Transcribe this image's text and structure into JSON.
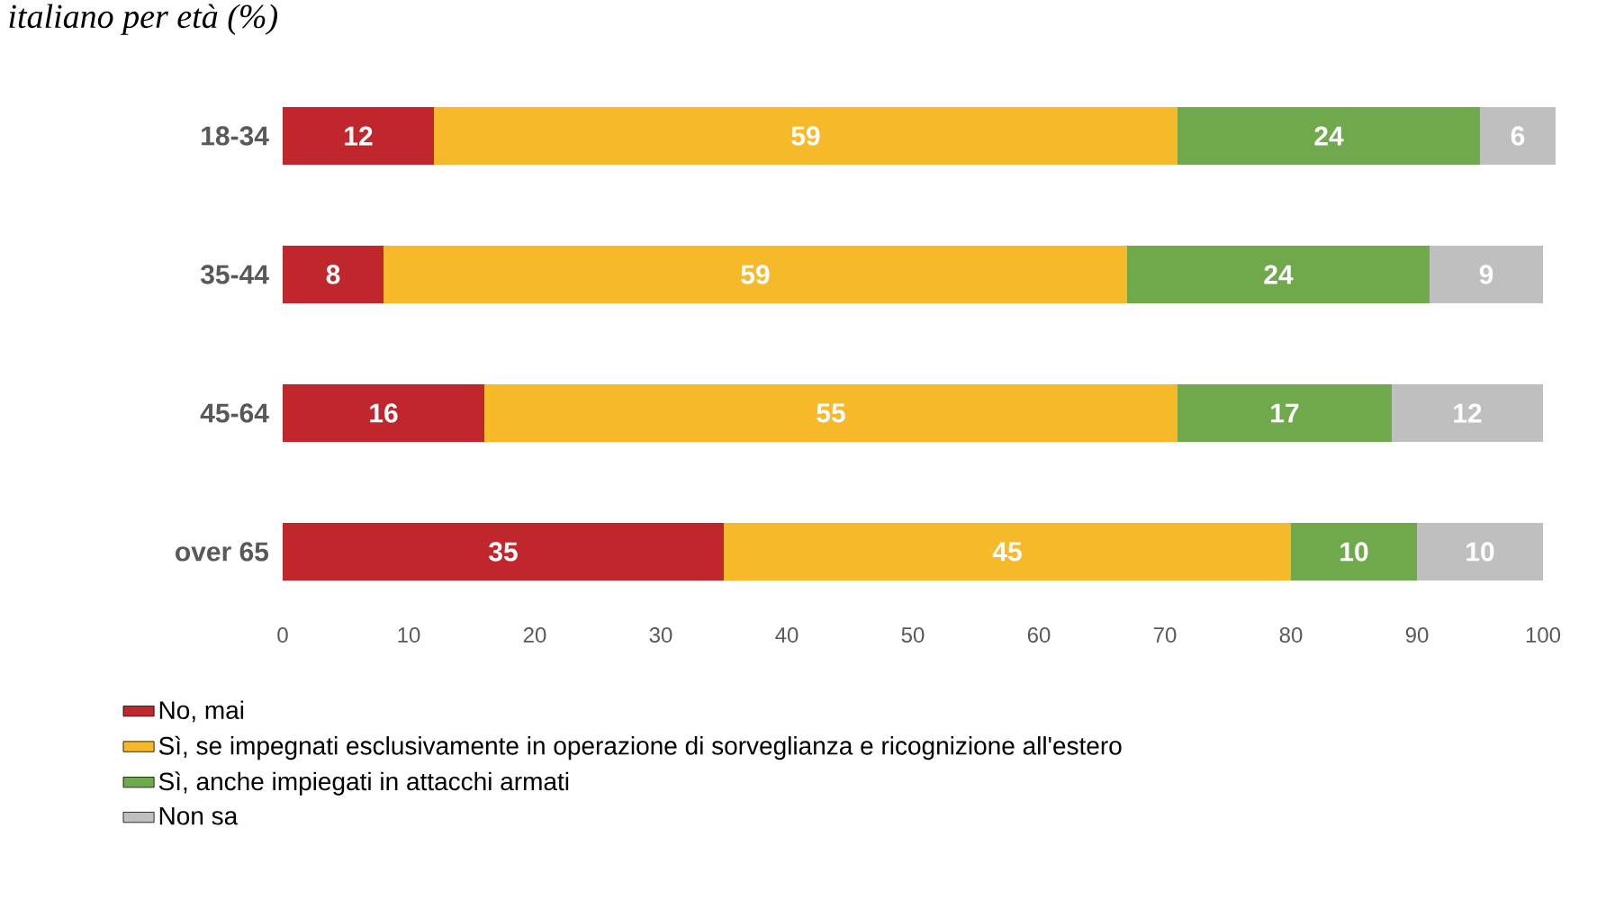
{
  "chart_data": {
    "type": "bar",
    "orientation": "horizontal",
    "stacked": true,
    "title": "italiano per età (%)",
    "categories": [
      "18-34",
      "35-44",
      "45-64",
      "over 65"
    ],
    "series": [
      {
        "name": "No, mai",
        "color": "#c0272d",
        "values": [
          12,
          8,
          16,
          35
        ]
      },
      {
        "name": "Sì, se impegnati esclusivamente in operazione di sorveglianza e ricognizione all'estero",
        "color": "#f5b92a",
        "values": [
          59,
          59,
          55,
          45
        ]
      },
      {
        "name": "Sì, anche impiegati in attacchi armati",
        "color": "#70a84c",
        "values": [
          24,
          24,
          17,
          10
        ]
      },
      {
        "name": "Non sa",
        "color": "#bfbfbf",
        "values": [
          6,
          9,
          12,
          10
        ]
      }
    ],
    "xlim": [
      0,
      101
    ],
    "xticks": [
      0,
      10,
      20,
      30,
      40,
      50,
      60,
      70,
      80,
      90,
      100
    ],
    "data_labels": true,
    "legend": "bottom",
    "grid": false
  }
}
